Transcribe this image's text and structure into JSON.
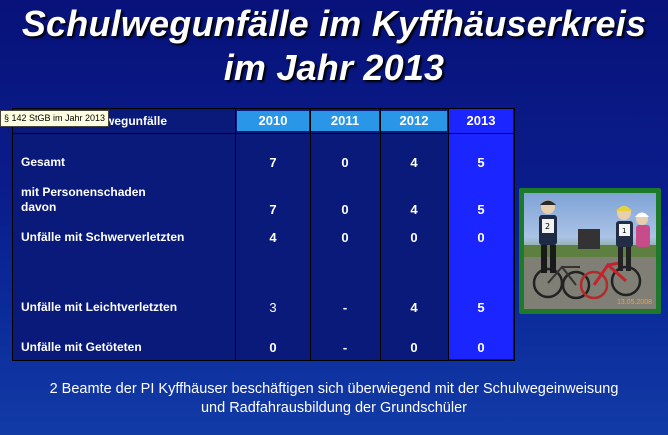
{
  "title_line1": "Schulwegunfälle im Kyffhäuserkreis",
  "title_line2": "im Jahr 2013",
  "tooltip": "§ 142 StGB im Jahr 2013",
  "table": {
    "header_label": "wegunfälle",
    "years": [
      "2010",
      "2011",
      "2012",
      "2013"
    ],
    "rows": [
      {
        "label": "Gesamt",
        "values": [
          "7",
          "0",
          "4",
          "5"
        ]
      },
      {
        "label": "mit Personenschaden\ndavon",
        "values": [
          "7",
          "0",
          "4",
          "5"
        ]
      },
      {
        "label": "Unfälle mit Schwerverletzten",
        "values": [
          "4",
          "0",
          "0",
          "0"
        ]
      },
      {
        "label": "Unfälle mit Leichtverletzten",
        "values": [
          "3",
          "-",
          "4",
          "5"
        ]
      },
      {
        "label": "Unfälle mit Getöteten",
        "values": [
          "0",
          "-",
          "0",
          "0"
        ]
      }
    ]
  },
  "photo": {
    "date_stamp": "13.05.2008"
  },
  "footer_line1": "2 Beamte der PI Kyffhäuser beschäftigen sich überwiegend mit der Schulwegeinweisung",
  "footer_line2": "und Radfahrausbildung der Grundschüler",
  "colors": {
    "background": "#0a1d8c",
    "header_cell": "#2a96e8",
    "highlight_column": "#1a25ff",
    "photo_frame": "#1d7a2a"
  }
}
